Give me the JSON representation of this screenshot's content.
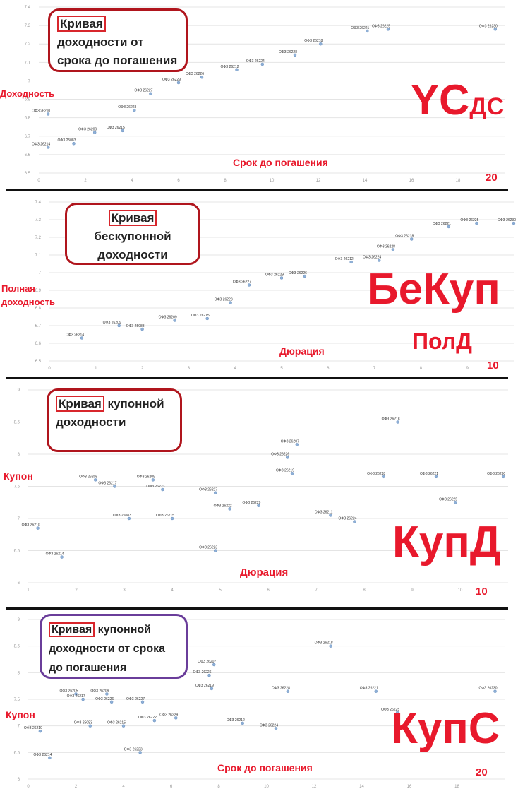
{
  "colors": {
    "accent": "#e8192c",
    "box_red": "#b0151d",
    "box_purple": "#6a3d9a",
    "point": "#8fb0d6",
    "grid": "#e4e4e4"
  },
  "chart_data": [
    {
      "type": "scatter",
      "callout": {
        "highlight": "Кривая",
        "rest": " доходности от срока до погашения"
      },
      "ylabel": "Доходность",
      "xlabel": "Срок до погашения",
      "corner_number": "20",
      "label_big": "YС",
      "label_sub": "ДС",
      "xlim": [
        0,
        20
      ],
      "ylim": [
        6.5,
        7.4
      ],
      "xticks": [
        "0",
        "2",
        "4",
        "6",
        "8",
        "10",
        "12",
        "14",
        "16",
        "18"
      ],
      "yticks": [
        "6.5",
        "6.6",
        "6.7",
        "6.8",
        "6.9",
        "7",
        "7.1",
        "7.2",
        "7.3",
        "7.4"
      ],
      "points": [
        {
          "name": "ОФЗ 26214",
          "x": 0.4,
          "y": 6.64
        },
        {
          "name": "ОФЗ 25083",
          "x": 1.5,
          "y": 6.66
        },
        {
          "name": "ОФЗ 26209",
          "x": 2.4,
          "y": 6.72
        },
        {
          "name": "ОФЗ 26215",
          "x": 3.6,
          "y": 6.73
        },
        {
          "name": "ОФЗ 26210",
          "x": 0.4,
          "y": 6.82
        },
        {
          "name": "ОФЗ 26223",
          "x": 4.1,
          "y": 6.84
        },
        {
          "name": "ОФЗ 26227",
          "x": 4.8,
          "y": 6.93
        },
        {
          "name": "ОФЗ 26229",
          "x": 6.0,
          "y": 6.99
        },
        {
          "name": "ОФЗ 26226",
          "x": 7.0,
          "y": 7.02
        },
        {
          "name": "ОФЗ 26212",
          "x": 8.5,
          "y": 7.06
        },
        {
          "name": "ОФЗ 26224",
          "x": 9.6,
          "y": 7.09
        },
        {
          "name": "ОФЗ 26228",
          "x": 11.0,
          "y": 7.14
        },
        {
          "name": "ОФЗ 26218",
          "x": 12.1,
          "y": 7.2
        },
        {
          "name": "ОФЗ 26221",
          "x": 14.1,
          "y": 7.27
        },
        {
          "name": "ОФЗ 26225",
          "x": 15.0,
          "y": 7.28
        },
        {
          "name": "ОФЗ 26230",
          "x": 19.6,
          "y": 7.28
        }
      ]
    },
    {
      "type": "scatter",
      "callout": {
        "highlight": "Кривая",
        "rest": " бескупонной доходности"
      },
      "ylabel": "Полная доходность",
      "xlabel": "Дюрация",
      "corner_number": "10",
      "label_big": "БеКуп",
      "label_sub": "ПолД",
      "xlim": [
        0,
        10
      ],
      "ylim": [
        6.5,
        7.4
      ],
      "xticks": [
        "0",
        "1",
        "2",
        "3",
        "4",
        "5",
        "6",
        "7",
        "8",
        "9"
      ],
      "yticks": [
        "6.5",
        "6.6",
        "6.7",
        "6.8",
        "6.9",
        "7",
        "7.1",
        "7.2",
        "7.3",
        "7.4"
      ],
      "points": [
        {
          "name": "ОФЗ 26214",
          "x": 0.7,
          "y": 6.63
        },
        {
          "name": "ОФЗ 26209",
          "x": 1.5,
          "y": 6.7
        },
        {
          "name": "ОФЗ 25083",
          "x": 2.0,
          "y": 6.68
        },
        {
          "name": "ОФЗ 26209",
          "x": 2.7,
          "y": 6.73
        },
        {
          "name": "ОФЗ 26215",
          "x": 3.4,
          "y": 6.74
        },
        {
          "name": "ОФЗ 26223",
          "x": 3.9,
          "y": 6.83
        },
        {
          "name": "ОФЗ 26227",
          "x": 4.3,
          "y": 6.93
        },
        {
          "name": "ОФЗ 26229",
          "x": 5.0,
          "y": 6.97
        },
        {
          "name": "ОФЗ 26226",
          "x": 5.5,
          "y": 6.98
        },
        {
          "name": "ОФЗ 26212",
          "x": 6.5,
          "y": 7.06
        },
        {
          "name": "ОФЗ 26224",
          "x": 7.1,
          "y": 7.07
        },
        {
          "name": "ОФЗ 26228",
          "x": 7.4,
          "y": 7.13
        },
        {
          "name": "ОФЗ 26218",
          "x": 7.8,
          "y": 7.19
        },
        {
          "name": "ОФЗ 26221",
          "x": 8.6,
          "y": 7.26
        },
        {
          "name": "ОФЗ 26225",
          "x": 9.2,
          "y": 7.28
        },
        {
          "name": "ОФЗ 26230",
          "x": 10.0,
          "y": 7.28
        }
      ]
    },
    {
      "type": "scatter",
      "callout": {
        "highlight": "Кривая",
        "rest": " купонной доходности"
      },
      "ylabel": "Купон",
      "xlabel": "Дюрация",
      "corner_number": "10",
      "label_big": "КупД",
      "label_sub": "",
      "xlim": [
        1,
        11
      ],
      "ylim": [
        6,
        9
      ],
      "xticks": [
        "1",
        "2",
        "3",
        "4",
        "5",
        "6",
        "7",
        "8",
        "9",
        "10"
      ],
      "yticks": [
        "6",
        "6.5",
        "7",
        "7.5",
        "8",
        "8.5",
        "9"
      ],
      "points": [
        {
          "name": "ОФЗ 26210",
          "x": 1.2,
          "y": 6.85
        },
        {
          "name": "ОФЗ 26214",
          "x": 1.7,
          "y": 6.4
        },
        {
          "name": "ОФЗ 26205",
          "x": 2.4,
          "y": 7.6
        },
        {
          "name": "ОФЗ 26217",
          "x": 2.8,
          "y": 7.5
        },
        {
          "name": "ОФЗ 25083",
          "x": 3.1,
          "y": 7.0
        },
        {
          "name": "ОФЗ 26209",
          "x": 3.6,
          "y": 7.6
        },
        {
          "name": "ОФЗ 26223",
          "x": 3.8,
          "y": 7.45
        },
        {
          "name": "ОФЗ 26215",
          "x": 4.0,
          "y": 7.0
        },
        {
          "name": "ОФЗ 26227",
          "x": 4.9,
          "y": 7.4
        },
        {
          "name": "ОФЗ 26222",
          "x": 5.2,
          "y": 7.15
        },
        {
          "name": "ОФЗ 26223",
          "x": 4.9,
          "y": 6.5
        },
        {
          "name": "ОФЗ 26229",
          "x": 5.8,
          "y": 7.2
        },
        {
          "name": "ОФЗ 26219",
          "x": 6.5,
          "y": 7.7
        },
        {
          "name": "ОФЗ 26226",
          "x": 6.4,
          "y": 7.95
        },
        {
          "name": "ОФЗ 26207",
          "x": 6.6,
          "y": 8.15
        },
        {
          "name": "ОФЗ 26211",
          "x": 7.3,
          "y": 7.05
        },
        {
          "name": "ОФЗ 26224",
          "x": 7.8,
          "y": 6.95
        },
        {
          "name": "ОФЗ 26228",
          "x": 8.4,
          "y": 7.65
        },
        {
          "name": "ОФЗ 26218",
          "x": 8.7,
          "y": 8.5
        },
        {
          "name": "ОФЗ 26221",
          "x": 9.5,
          "y": 7.65
        },
        {
          "name": "ОФЗ 26225",
          "x": 9.9,
          "y": 7.25
        },
        {
          "name": "ОФЗ 26230",
          "x": 10.9,
          "y": 7.65
        }
      ]
    },
    {
      "type": "scatter",
      "callout": {
        "highlight": "Кривая",
        "rest": " купонной доходности от срока до погашения"
      },
      "ylabel": "Купон",
      "xlabel": "Срок до погашения",
      "corner_number": "20",
      "label_big": "КупС",
      "label_sub": "",
      "xlim": [
        0,
        20
      ],
      "ylim": [
        6,
        9
      ],
      "xticks": [
        "0",
        "2",
        "4",
        "6",
        "8",
        "10",
        "12",
        "14",
        "16",
        "18"
      ],
      "yticks": [
        "6",
        "6.5",
        "7",
        "7.5",
        "8",
        "8.5",
        "9"
      ],
      "points": [
        {
          "name": "ОФЗ 26210",
          "x": 0.5,
          "y": 6.9
        },
        {
          "name": "ОФЗ 26214",
          "x": 0.9,
          "y": 6.4
        },
        {
          "name": "ОФЗ 26205",
          "x": 2.0,
          "y": 7.6
        },
        {
          "name": "ОФЗ 26217",
          "x": 2.3,
          "y": 7.5
        },
        {
          "name": "ОФЗ 25083",
          "x": 2.6,
          "y": 7.0
        },
        {
          "name": "ОФЗ 26209",
          "x": 3.3,
          "y": 7.6
        },
        {
          "name": "ОФЗ 26226",
          "x": 3.5,
          "y": 7.45
        },
        {
          "name": "ОФЗ 26215",
          "x": 4.0,
          "y": 7.0
        },
        {
          "name": "ОФЗ 26227",
          "x": 4.8,
          "y": 7.45
        },
        {
          "name": "ОФЗ 26222",
          "x": 5.3,
          "y": 7.1
        },
        {
          "name": "ОФЗ 26223",
          "x": 4.7,
          "y": 6.5
        },
        {
          "name": "ОФЗ 26229",
          "x": 6.2,
          "y": 7.15
        },
        {
          "name": "ОФЗ 26219",
          "x": 7.7,
          "y": 7.7
        },
        {
          "name": "ОФЗ 26226",
          "x": 7.6,
          "y": 7.95
        },
        {
          "name": "ОФЗ 26207",
          "x": 7.8,
          "y": 8.15
        },
        {
          "name": "ОФЗ 26212",
          "x": 9.0,
          "y": 7.05
        },
        {
          "name": "ОФЗ 26224",
          "x": 10.4,
          "y": 6.95
        },
        {
          "name": "ОФЗ 26228",
          "x": 10.9,
          "y": 7.65
        },
        {
          "name": "ОФЗ 26218",
          "x": 12.7,
          "y": 8.5
        },
        {
          "name": "ОФЗ 26221",
          "x": 14.6,
          "y": 7.65
        },
        {
          "name": "ОФЗ 26225",
          "x": 15.5,
          "y": 7.25
        },
        {
          "name": "ОФЗ 26230",
          "x": 19.6,
          "y": 7.65
        }
      ]
    }
  ]
}
